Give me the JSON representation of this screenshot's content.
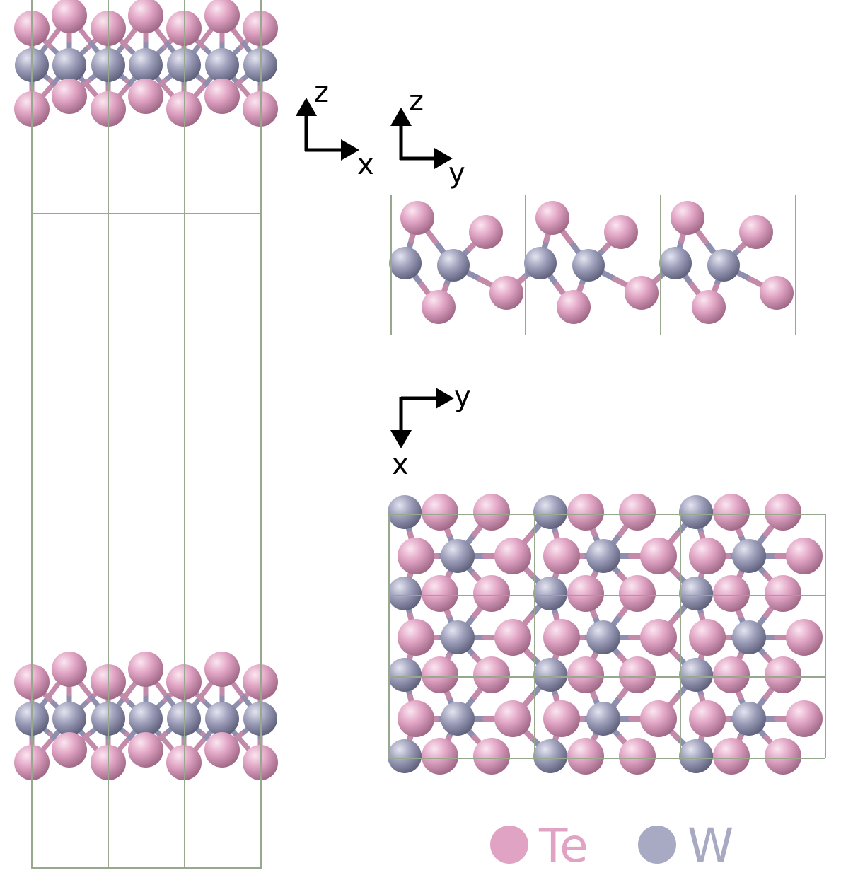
{
  "colors": {
    "Te": "#e0a3c3",
    "W": "#a8a9c3",
    "cell": "#97a88f",
    "axes": "#000000"
  },
  "axes": {
    "side_view_x": {
      "vertical": "z",
      "horizontal": "x"
    },
    "side_view_y": {
      "vertical": "z",
      "horizontal": "y"
    },
    "top_view": {
      "horizontal": "y",
      "vertical": "x"
    }
  },
  "legend": [
    {
      "element": "Te",
      "label": "Te",
      "color": "#e0a3c3"
    },
    {
      "element": "W",
      "label": "W",
      "color": "#a8a9c3"
    }
  ]
}
